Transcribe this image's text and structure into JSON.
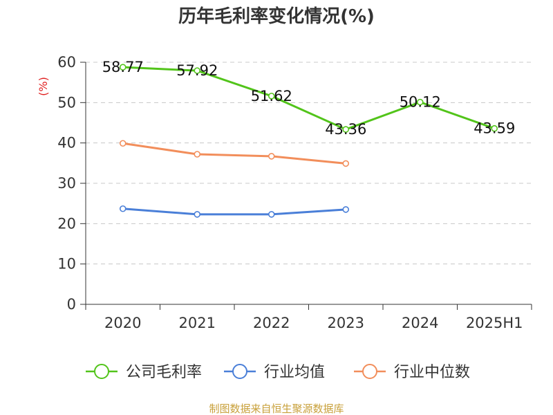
{
  "chart_data": {
    "type": "line",
    "title": "历年毛利率变化情况(%)",
    "ylabel": "(%)",
    "xlabel": "",
    "categories": [
      "2020",
      "2021",
      "2022",
      "2023",
      "2024",
      "2025H1"
    ],
    "ylim": [
      0,
      60
    ],
    "yticks": [
      0,
      10,
      20,
      30,
      40,
      50,
      60
    ],
    "grid": true,
    "legend_position": "bottom",
    "series": [
      {
        "name": "公司毛利率",
        "color": "#52c41a",
        "values": [
          58.77,
          57.92,
          51.62,
          43.36,
          50.12,
          43.59
        ],
        "show_labels": true
      },
      {
        "name": "行业均值",
        "color": "#4a7fd8",
        "values": [
          23.7,
          22.3,
          22.3,
          23.5,
          null,
          null
        ],
        "show_labels": false
      },
      {
        "name": "行业中位数",
        "color": "#f28e5b",
        "values": [
          39.9,
          37.2,
          36.7,
          34.9,
          null,
          null
        ],
        "show_labels": false
      }
    ]
  },
  "source": "制图数据来自恒生聚源数据库"
}
